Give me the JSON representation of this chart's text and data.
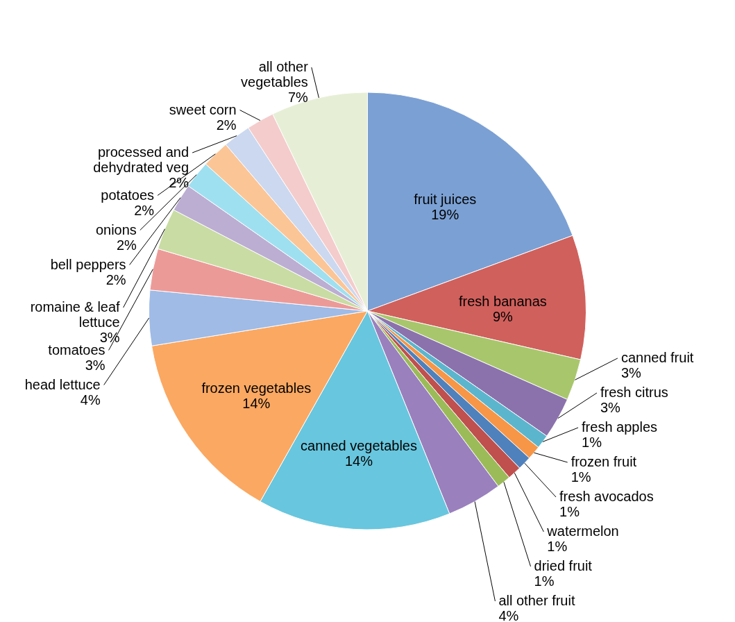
{
  "chart_data": {
    "type": "pie",
    "categories": [
      "fruit juices",
      "fresh bananas",
      "canned fruit",
      "fresh citrus",
      "fresh apples",
      "frozen fruit",
      "fresh avocados",
      "watermelon",
      "dried fruit",
      "all other fruit",
      "canned vegetables",
      "frozen vegetables",
      "head lettuce",
      "tomatoes",
      "romaine & leaf lettuce",
      "bell peppers",
      "onions",
      "potatoes",
      "processed and dehydrated veg",
      "sweet corn",
      "all other vegetables"
    ],
    "values": [
      19,
      9,
      3,
      3,
      1,
      1,
      1,
      1,
      1,
      4,
      14,
      14,
      4,
      3,
      3,
      2,
      2,
      2,
      2,
      2,
      7
    ],
    "value_labels": [
      "19%",
      "9%",
      "3%",
      "3%",
      "1%",
      "1%",
      "1%",
      "1%",
      "1%",
      "4%",
      "14%",
      "14%",
      "4%",
      "3%",
      "3%",
      "2%",
      "2%",
      "2%",
      "2%",
      "2%",
      "7%"
    ],
    "colors": [
      "#7ba0d4",
      "#d0605c",
      "#a8c66c",
      "#8c72ad",
      "#5bb6cd",
      "#f79646",
      "#4f81bd",
      "#c0504d",
      "#9bbb59",
      "#9a80bd",
      "#68c6de",
      "#fba862",
      "#9fbbe6",
      "#ec9a98",
      "#c9dca3",
      "#bcaed2",
      "#9fe0f0",
      "#fcc596",
      "#cbd8f0",
      "#f4cccc",
      "#e6efd6"
    ]
  }
}
